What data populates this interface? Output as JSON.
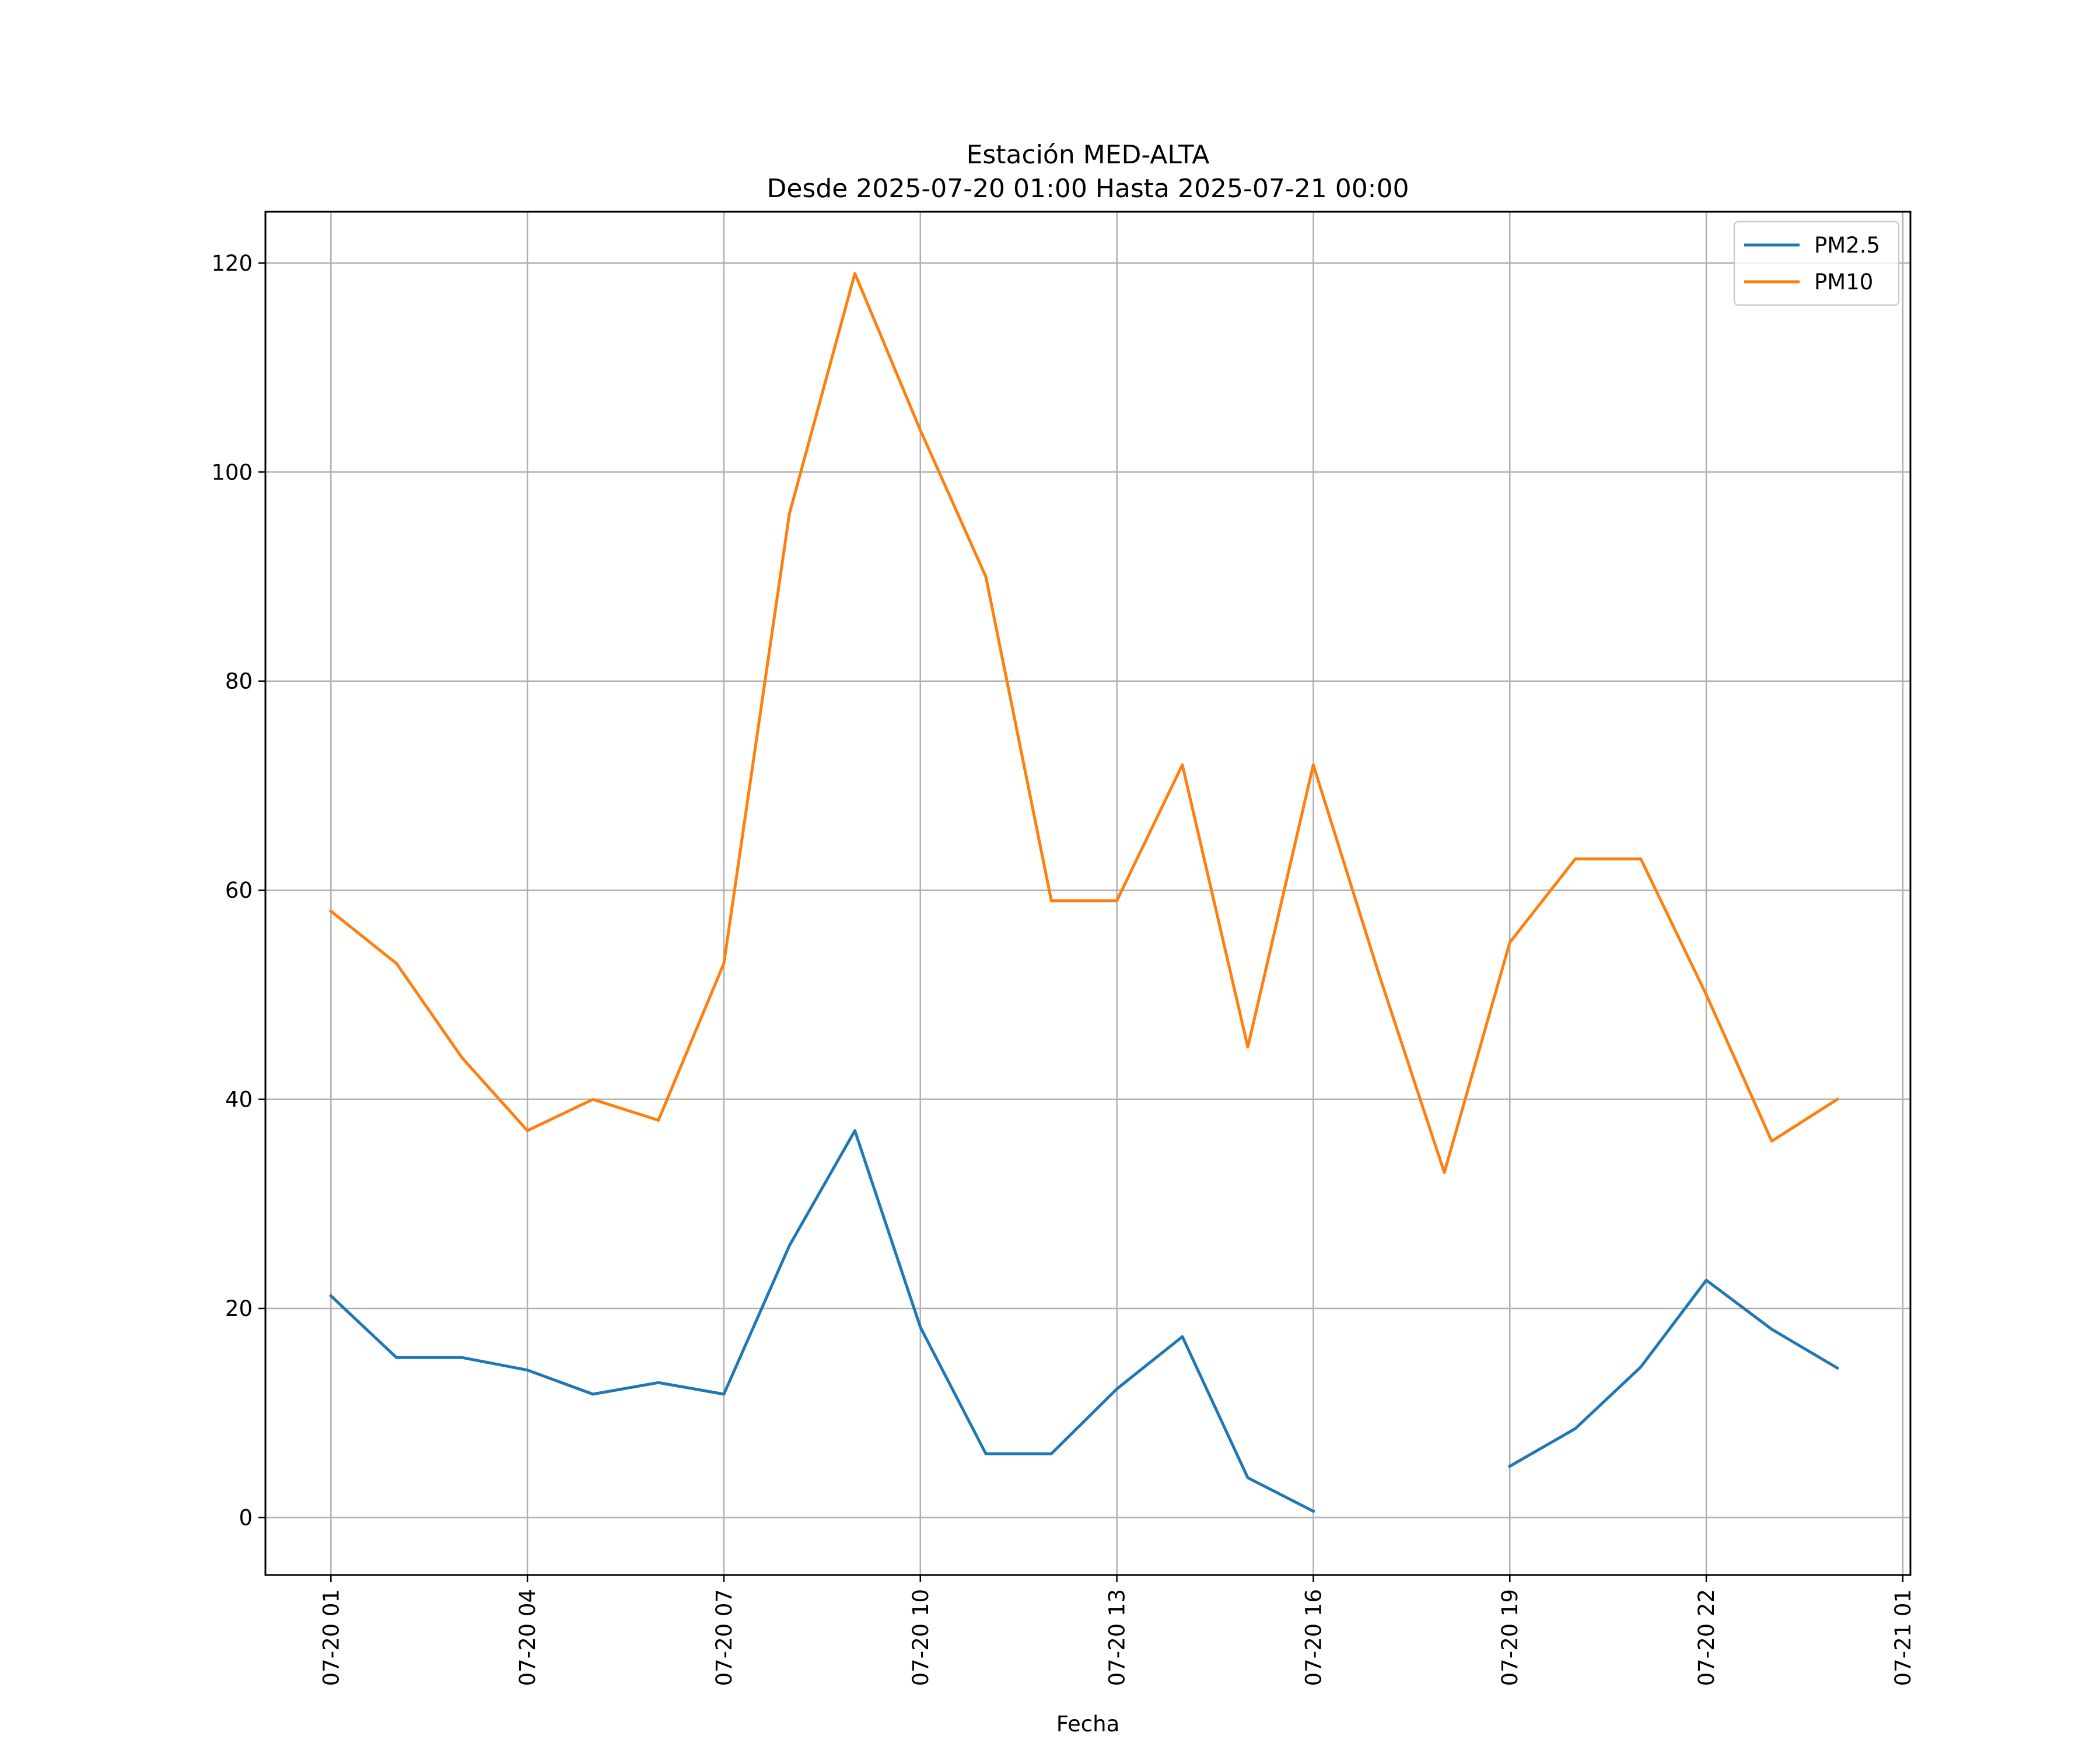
{
  "chart_data": {
    "type": "line",
    "title": "Estación MED-ALTA",
    "subtitle": "Desde 2025-07-20 01:00 Hasta 2025-07-21 00:00",
    "xlabel": "Fecha",
    "ylabel": "",
    "x": [
      "07-20 01",
      "07-20 02",
      "07-20 03",
      "07-20 04",
      "07-20 05",
      "07-20 06",
      "07-20 07",
      "07-20 08",
      "07-20 09",
      "07-20 10",
      "07-20 11",
      "07-20 12",
      "07-20 13",
      "07-20 14",
      "07-20 15",
      "07-20 16",
      "07-20 17",
      "07-20 18",
      "07-20 19",
      "07-20 20",
      "07-20 21",
      "07-20 22",
      "07-20 23",
      "07-21 00"
    ],
    "x_ticks": [
      "07-20 01",
      "07-20 04",
      "07-20 07",
      "07-20 10",
      "07-20 13",
      "07-20 16",
      "07-20 19",
      "07-20 22",
      "07-21 01"
    ],
    "xlim": [
      "07-20 00:00",
      "07-21 01:07"
    ],
    "y_ticks": [
      0,
      20,
      40,
      60,
      80,
      100,
      120
    ],
    "ylim": [
      -5.5,
      124.9
    ],
    "grid": true,
    "legend_position": "top-right",
    "series": [
      {
        "name": "PM2.5",
        "color": "#1f77b4",
        "values": [
          21.2,
          15.3,
          15.3,
          14.1,
          11.8,
          12.9,
          11.8,
          26,
          37,
          18.2,
          6.1,
          6.1,
          12.3,
          17.3,
          3.8,
          0.6,
          null,
          null,
          4.9,
          8.5,
          14.4,
          22.7,
          18,
          14.3
        ]
      },
      {
        "name": "PM10",
        "color": "#ff7f0e",
        "values": [
          58,
          53,
          44,
          37,
          40,
          38,
          53,
          96,
          119,
          104,
          90,
          59,
          59,
          72,
          45,
          72,
          52,
          33,
          55,
          63,
          63,
          50,
          36,
          40
        ]
      }
    ]
  }
}
